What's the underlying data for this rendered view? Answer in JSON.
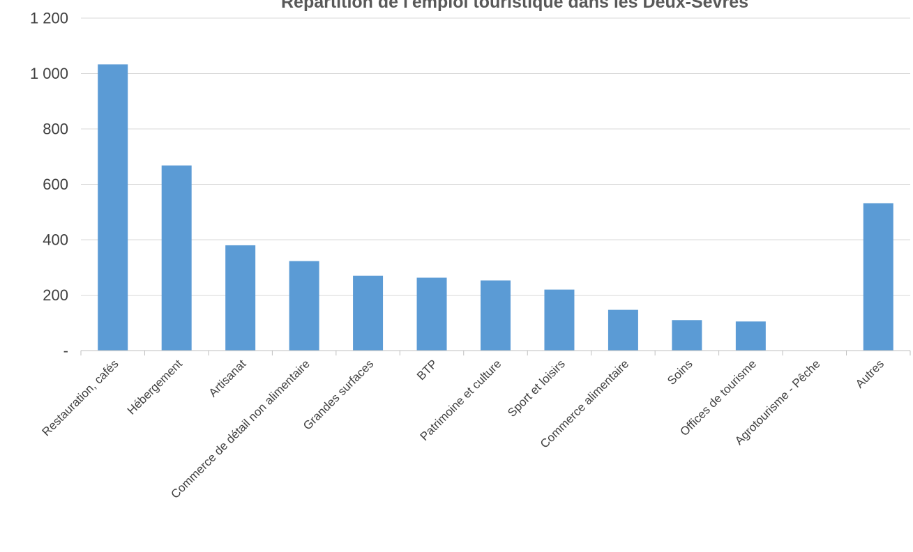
{
  "chart_data": {
    "type": "bar",
    "title": "Répartition de l'emploi touristique dans les Deux-Sèvres",
    "xlabel": "",
    "ylabel": "",
    "ylim": [
      0,
      1200
    ],
    "yticks": [
      0,
      200,
      400,
      600,
      800,
      1000,
      1200
    ],
    "ytick_labels": [
      "-",
      "200",
      "400",
      "600",
      "800",
      "1 000",
      "1 200"
    ],
    "grid": true,
    "legend": "none",
    "bar_color": "#5b9bd5",
    "categories": [
      "Restauration, cafés",
      "Hébergement",
      "Artisanat",
      "Commerce de détail non alimentaire",
      "Grandes surfaces",
      "BTP",
      "Patrimoine et culture",
      "Sport et loisirs",
      "Commerce alimentaire",
      "Soins",
      "Offices de tourisme",
      "Agrotourisme - Pêche",
      "Autres"
    ],
    "values": [
      1033,
      668,
      380,
      323,
      270,
      263,
      253,
      220,
      147,
      110,
      105,
      0,
      532
    ]
  }
}
